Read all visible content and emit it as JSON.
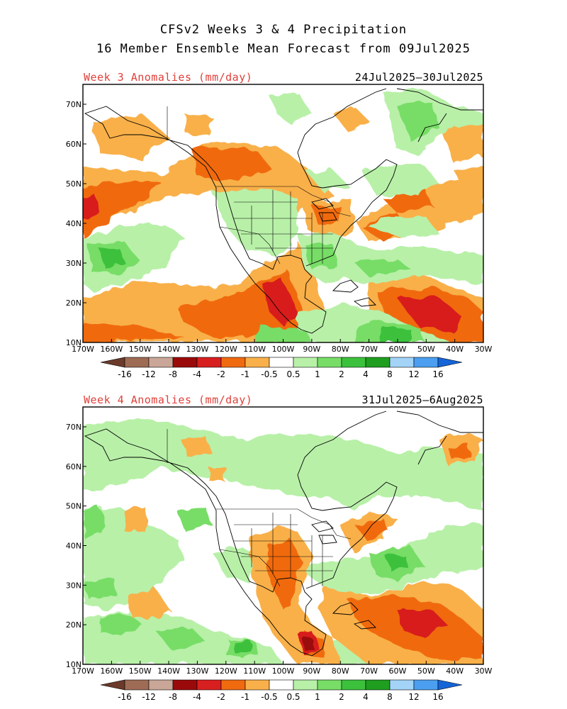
{
  "title_line1": "CFSv2 Weeks 3 & 4 Precipitation",
  "title_line2": "16 Member Ensemble Mean Forecast from 09Jul2025",
  "lon_labels": [
    "170W",
    "160W",
    "150W",
    "140W",
    "130W",
    "120W",
    "110W",
    "100W",
    "90W",
    "80W",
    "70W",
    "60W",
    "50W",
    "40W",
    "30W"
  ],
  "lat_labels": [
    "70N",
    "60N",
    "50N",
    "40N",
    "30N",
    "20N",
    "10N"
  ],
  "colorbar": {
    "labels": [
      "-16",
      "-12",
      "-8",
      "-4",
      "-2",
      "-1",
      "-0.5",
      "0.5",
      "1",
      "2",
      "4",
      "8",
      "12",
      "16"
    ],
    "colors": [
      "#6b3a2a",
      "#9e6b55",
      "#c9a697",
      "#9b0a0a",
      "#d81f1f",
      "#f06a10",
      "#f9b04a",
      "#ffffff",
      "#b8f0a8",
      "#77dd66",
      "#3cc13c",
      "#1f9e1f",
      "#a3d3f7",
      "#4c9ff0",
      "#1565d8"
    ]
  },
  "panels": [
    {
      "label": "Week 3 Anomalies (mm/day)",
      "dates": "24Jul2025–30Jul2025"
    },
    {
      "label": "Week 4 Anomalies (mm/day)",
      "dates": "31Jul2025–6Aug2025"
    }
  ]
}
